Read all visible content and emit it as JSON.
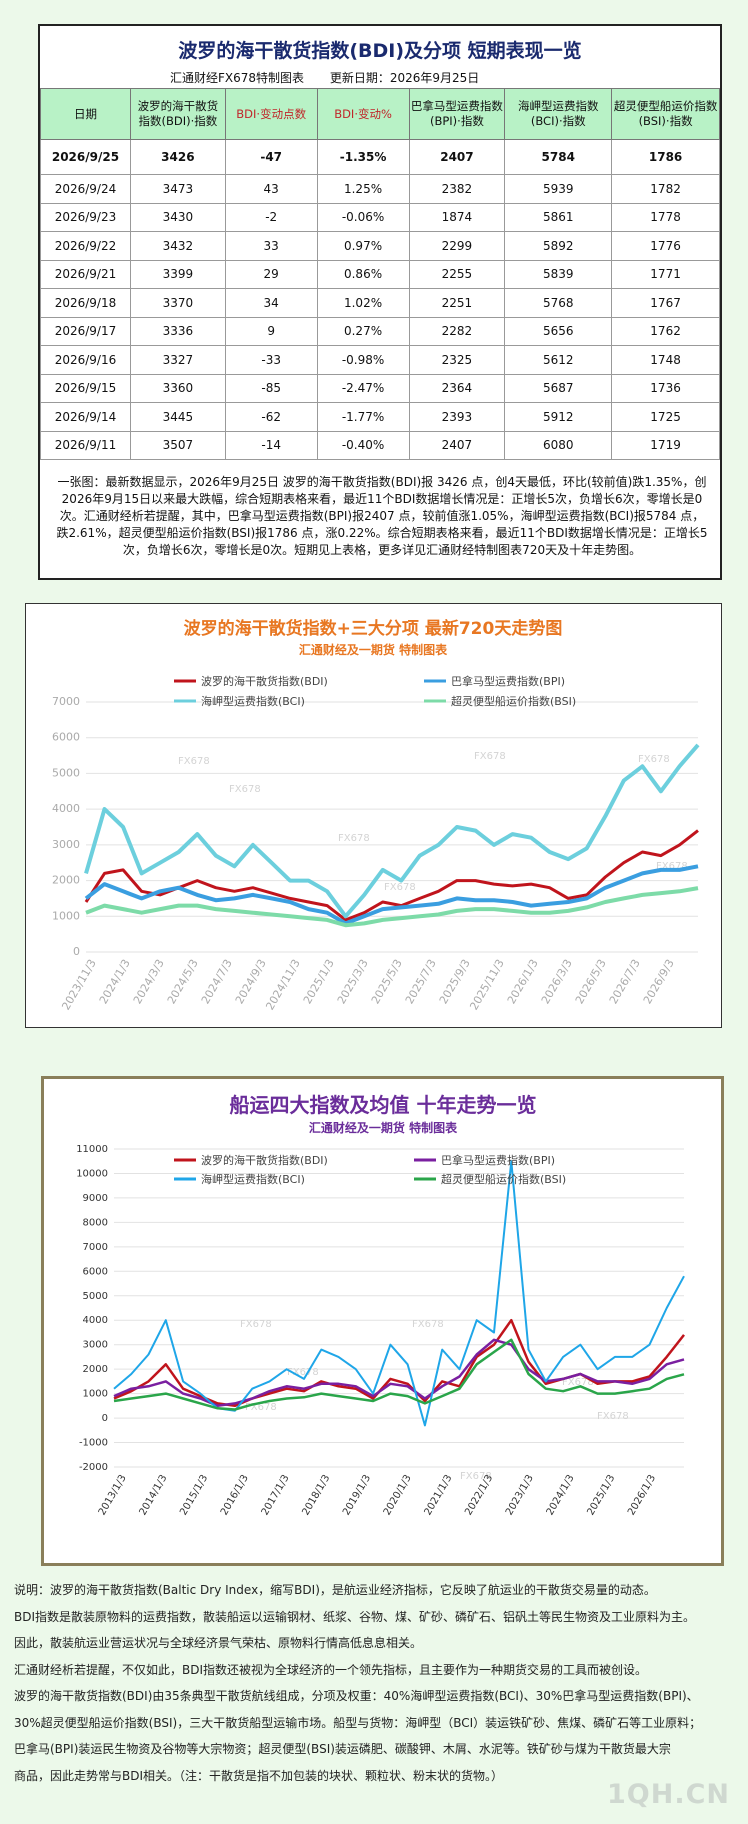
{
  "top_table": {
    "title": "波罗的海干散货指数(BDI)及分项  短期表现一览",
    "source": "汇通财经FX678特制图表",
    "update": "更新日期：2026年9月25日",
    "headers": [
      "日期",
      "波罗的海干散货指数(BDI)·指数",
      "BDI·变动点数",
      "BDI·变动%",
      "巴拿马型运费指数(BPI)·指数",
      "海岬型运费指数(BCI)·指数",
      "超灵便型船运价指数(BSI)·指数"
    ],
    "rows": [
      [
        "2026/9/25",
        "3426",
        "-47",
        "-1.35%",
        "2407",
        "5784",
        "1786"
      ],
      [
        "2026/9/24",
        "3473",
        "43",
        "1.25%",
        "2382",
        "5939",
        "1782"
      ],
      [
        "2026/9/23",
        "3430",
        "-2",
        "-0.06%",
        "1874",
        "5861",
        "1778"
      ],
      [
        "2026/9/22",
        "3432",
        "33",
        "0.97%",
        "2299",
        "5892",
        "1776"
      ],
      [
        "2026/9/21",
        "3399",
        "29",
        "0.86%",
        "2255",
        "5839",
        "1771"
      ],
      [
        "2026/9/18",
        "3370",
        "34",
        "1.02%",
        "2251",
        "5768",
        "1767"
      ],
      [
        "2026/9/17",
        "3336",
        "9",
        "0.27%",
        "2282",
        "5656",
        "1762"
      ],
      [
        "2026/9/16",
        "3327",
        "-33",
        "-0.98%",
        "2325",
        "5612",
        "1748"
      ],
      [
        "2026/9/15",
        "3360",
        "-85",
        "-2.47%",
        "2364",
        "5687",
        "1736"
      ],
      [
        "2026/9/14",
        "3445",
        "-62",
        "-1.77%",
        "2393",
        "5912",
        "1725"
      ],
      [
        "2026/9/11",
        "3507",
        "-14",
        "-0.40%",
        "2407",
        "6080",
        "1719"
      ]
    ],
    "summary": "一张图：最新数据显示，2026年9月25日 波罗的海干散货指数(BDI)报 3426 点，创4天最低，环比(较前值)跌1.35%，创2026年9月15日以来最大跌幅，综合短期表格来看，最近11个BDI数据增长情况是：正增长5次，负增长6次，零增长是0次。汇通财经析若提醒，其中，巴拿马型运费指数(BPI)报2407 点，较前值涨1.05%，海岬型运费指数(BCI)报5784 点，跌2.61%，超灵便型船运价指数(BSI)报1786 点，涨0.22%。综合短期表格来看，最近11个BDI数据增长情况是：正增长5次，负增长6次，零增长是0次。短期见上表格，更多详见汇通财经特制图表720天及十年走势图。"
  },
  "chart_data": [
    {
      "type": "line",
      "title": "波罗的海干散货指数+三大分项  最新720天走势图",
      "subtitle": "汇通财经及一期货  特制图表",
      "ylim": [
        0,
        7000
      ],
      "yticks": [
        "0",
        "1000",
        "2000",
        "3000",
        "4000",
        "5000",
        "6000",
        "7000"
      ],
      "x_tick_labels": [
        "2023/11/3",
        "2024/1/3",
        "2024/3/3",
        "2024/5/3",
        "2024/7/3",
        "2024/9/3",
        "2024/11/3",
        "2025/1/3",
        "2025/3/3",
        "2025/5/3",
        "2025/7/3",
        "2025/9/3",
        "2025/11/3",
        "2026/1/3",
        "2026/3/3",
        "2026/5/3",
        "2026/7/3",
        "2026/9/3"
      ],
      "legend": [
        "波罗的海干散货指数(BDI)",
        "巴拿马型运费指数(BPI)",
        "海岬型运费指数(BCI)",
        "超灵便型船运价指数(BSI)"
      ],
      "watermarks": [
        "FX678",
        "FX678",
        "FX678",
        "FX678",
        "FX678",
        "FX678",
        "FX678"
      ],
      "colors": {
        "BDI": "#c0141c",
        "BPI": "#3a9ee0",
        "BCI": "#6ccfdd",
        "BSI": "#7ddba8"
      },
      "series": [
        {
          "name": "波罗的海干散货指数(BDI)",
          "values": [
            1400,
            2200,
            2300,
            1700,
            1600,
            1800,
            2000,
            1800,
            1700,
            1800,
            1650,
            1500,
            1400,
            1300,
            900,
            1100,
            1400,
            1300,
            1500,
            1700,
            2000,
            2000,
            1900,
            1850,
            1900,
            1800,
            1500,
            1600,
            2100,
            2500,
            2800,
            2700,
            3000,
            3400
          ]
        },
        {
          "name": "巴拿马型运费指数(BPI)",
          "values": [
            1500,
            1900,
            1700,
            1500,
            1700,
            1800,
            1600,
            1450,
            1500,
            1600,
            1500,
            1400,
            1200,
            1100,
            800,
            1000,
            1200,
            1250,
            1300,
            1350,
            1500,
            1450,
            1450,
            1400,
            1300,
            1350,
            1400,
            1500,
            1800,
            2000,
            2200,
            2300,
            2300,
            2400
          ]
        },
        {
          "name": "海岬型运费指数(BCI)",
          "values": [
            2200,
            4000,
            3500,
            2200,
            2500,
            2800,
            3300,
            2700,
            2400,
            3000,
            2500,
            2000,
            2000,
            1700,
            1000,
            1600,
            2300,
            2000,
            2700,
            3000,
            3500,
            3400,
            3000,
            3300,
            3200,
            2800,
            2600,
            2900,
            3800,
            4800,
            5200,
            4500,
            5200,
            5800
          ]
        },
        {
          "name": "超灵便型船运价指数(BSI)",
          "values": [
            1100,
            1300,
            1200,
            1100,
            1200,
            1300,
            1300,
            1200,
            1150,
            1100,
            1050,
            1000,
            950,
            900,
            750,
            800,
            900,
            950,
            1000,
            1050,
            1150,
            1200,
            1200,
            1150,
            1100,
            1100,
            1150,
            1250,
            1400,
            1500,
            1600,
            1650,
            1700,
            1790
          ]
        }
      ]
    },
    {
      "type": "line",
      "title": "船运四大指数及均值 十年走势一览",
      "subtitle": "汇通财经及一期货 特制图表",
      "ylim": [
        -2000,
        11000
      ],
      "yticks": [
        "-2000",
        "-1000",
        "0",
        "1000",
        "2000",
        "3000",
        "4000",
        "5000",
        "6000",
        "7000",
        "8000",
        "9000",
        "10000",
        "11000"
      ],
      "x_tick_labels": [
        "2013/1/3",
        "2014/1/3",
        "2015/1/3",
        "2016/1/3",
        "2017/1/3",
        "2018/1/3",
        "2019/1/3",
        "2020/1/3",
        "2021/1/3",
        "2022/1/3",
        "2023/1/3",
        "2024/1/3",
        "2025/1/3",
        "2026/1/3"
      ],
      "legend": [
        "波罗的海干散货指数(BDI)",
        "巴拿马型运费指数(BPI)",
        "海岬型运费指数(BCI)",
        "超灵便型船运价指数(BSI)"
      ],
      "watermarks": [
        "FX678",
        "FX678",
        "FX678",
        "FX678",
        "FX678",
        "FX678",
        "FX678"
      ],
      "colors": {
        "BDI": "#c0141c",
        "BPI": "#7a1fa0",
        "BCI": "#1fa6e8",
        "BSI": "#2aa54a"
      },
      "series": [
        {
          "name": "波罗的海干散货指数(BDI)",
          "values": [
            800,
            1100,
            1500,
            2200,
            1200,
            900,
            600,
            500,
            800,
            1000,
            1200,
            1100,
            1500,
            1300,
            1200,
            800,
            1600,
            1400,
            700,
            1500,
            1300,
            2500,
            3000,
            4000,
            2300,
            1400,
            1600,
            1800,
            1400,
            1500,
            1500,
            1700,
            2500,
            3400
          ]
        },
        {
          "name": "巴拿马型运费指数(BPI)",
          "values": [
            900,
            1200,
            1300,
            1500,
            1000,
            800,
            500,
            600,
            800,
            1100,
            1300,
            1200,
            1400,
            1400,
            1300,
            900,
            1400,
            1300,
            800,
            1300,
            1700,
            2600,
            3200,
            3000,
            2000,
            1500,
            1600,
            1800,
            1500,
            1500,
            1400,
            1600,
            2200,
            2400
          ]
        },
        {
          "name": "海岬型运费指数(BCI)",
          "values": [
            1200,
            1800,
            2600,
            4000,
            1500,
            1000,
            400,
            300,
            1200,
            1500,
            2000,
            1600,
            2800,
            2500,
            2000,
            1000,
            3000,
            2200,
            -300,
            2800,
            2000,
            4000,
            3500,
            10500,
            2800,
            1500,
            2500,
            3000,
            2000,
            2500,
            2500,
            3000,
            4500,
            5800
          ]
        },
        {
          "name": "超灵便型船运价指数(BSI)",
          "values": [
            700,
            800,
            900,
            1000,
            800,
            600,
            400,
            350,
            550,
            700,
            800,
            850,
            1000,
            900,
            800,
            700,
            1000,
            900,
            600,
            900,
            1200,
            2200,
            2700,
            3200,
            1800,
            1200,
            1100,
            1300,
            1000,
            1000,
            1100,
            1200,
            1600,
            1790
          ]
        }
      ]
    }
  ],
  "notes": [
    "说明：波罗的海干散货指数(Baltic Dry Index，缩写BDI)，是航运业经济指标，它反映了航运业的干散货交易量的动态。",
    "BDI指数是散装原物料的运费指数，散装船运以运输钢材、纸浆、谷物、煤、矿砂、磷矿石、铝矾土等民生物资及工业原料为主。",
    "因此，散装航运业营运状况与全球经济景气荣枯、原物料行情高低息息相关。",
    "汇通财经析若提醒，不仅如此，BDI指数还被视为全球经济的一个领先指标，且主要作为一种期货交易的工具而被创设。",
    "波罗的海干散货指数(BDI)由35条典型干散货航线组成，分项及权重：40%海岬型运费指数(BCI)、30%巴拿马型运费指数(BPI)、",
    "30%超灵便型船运价指数(BSI)，三大干散货船型运输市场。船型与货物：海岬型（BCI）装运铁矿砂、焦煤、磷矿石等工业原料；",
    "巴拿马(BPI)装运民生物资及谷物等大宗物资；超灵便型(BSI)装运磷肥、碳酸钾、木屑、水泥等。铁矿砂与煤为干散货最大宗",
    "商品，因此走势常与BDI相关。（注：干散货是指不加包装的块状、颗粒状、粉末状的货物。）"
  ],
  "watermark": "1QH.CN"
}
